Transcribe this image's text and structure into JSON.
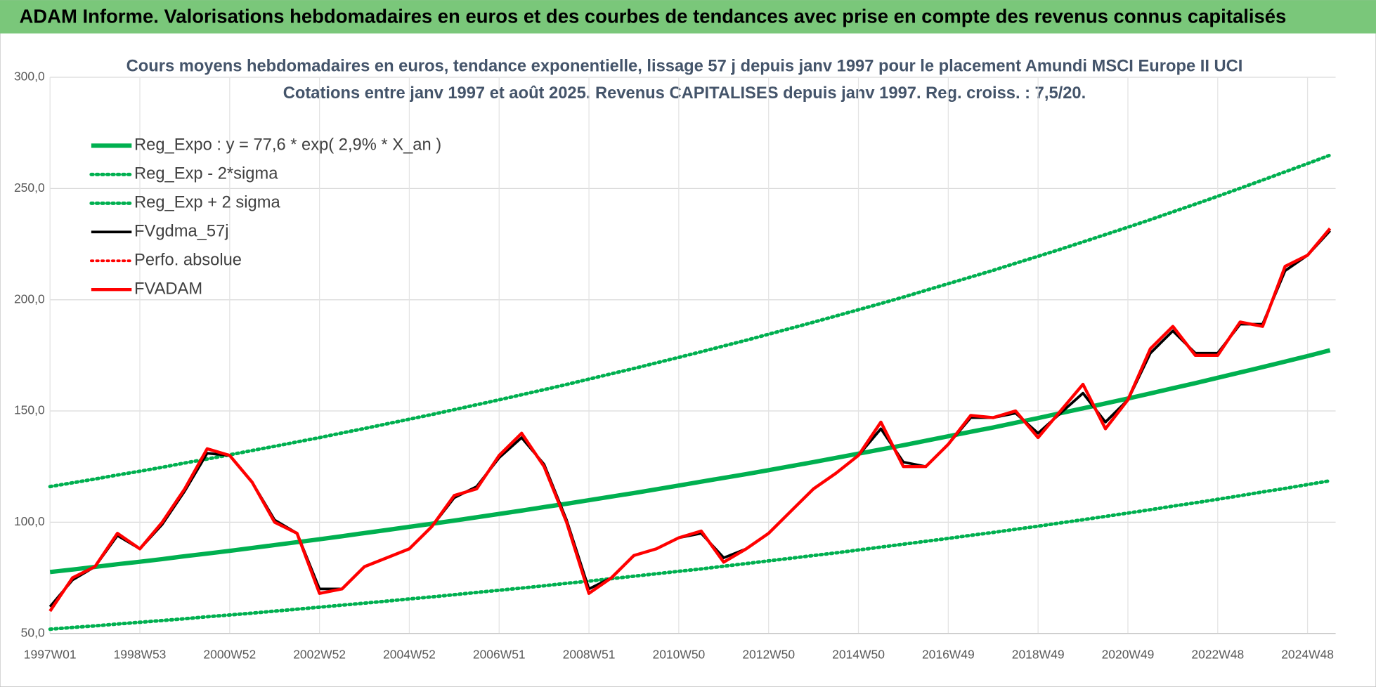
{
  "header": {
    "title": "ADAM Informe. Valorisations hebdomadaires en euros et des courbes de tendances avec prise en compte des revenus connus capitalisés"
  },
  "chart_data": {
    "type": "line",
    "title": "Cours moyens hebdomadaires en euros, tendance exponentielle, lissage 57 j depuis janv 1997 pour le placement Amundi MSCI Europe II UCI",
    "subtitle": "Cotations entre janv 1997 et août 2025. Revenus CAPITALISES depuis janv 1997. Reg. croiss. : 7,5/20.",
    "categories": [
      "1997W01",
      null,
      null,
      null,
      "1998W53",
      null,
      null,
      null,
      "2000W52",
      null,
      null,
      null,
      "2002W52",
      null,
      null,
      null,
      "2004W52",
      null,
      null,
      null,
      "2006W51",
      null,
      null,
      null,
      "2008W51",
      null,
      null,
      null,
      "2010W50",
      null,
      null,
      null,
      "2012W50",
      null,
      null,
      null,
      "2014W50",
      null,
      null,
      null,
      "2016W49",
      null,
      null,
      null,
      "2018W49",
      null,
      null,
      null,
      "2020W49",
      null,
      null,
      null,
      "2022W48",
      null,
      null,
      null,
      "2024W48",
      null
    ],
    "ylim": [
      50,
      300
    ],
    "yticks": [
      {
        "value": 50,
        "label": "50,0"
      },
      {
        "value": 100,
        "label": "100,0"
      },
      {
        "value": 150,
        "label": "150,0"
      },
      {
        "value": 200,
        "label": "200,0"
      },
      {
        "value": 250,
        "label": "250,0"
      },
      {
        "value": 300,
        "label": "300,0"
      }
    ],
    "grid": true,
    "legend": "upper-left",
    "series": [
      {
        "name": "Reg_Expo : y = 77,6 * exp( 2,9% *  X_an )",
        "color": "#00b050",
        "style": "solid",
        "values": [
          77.6,
          78.7,
          79.9,
          81.1,
          82.2,
          83.4,
          84.7,
          85.9,
          87.1,
          88.4,
          89.7,
          91.0,
          92.3,
          93.7,
          95.1,
          96.5,
          97.9,
          99.3,
          100.7,
          102.2,
          103.7,
          105.2,
          106.8,
          108.3,
          109.9,
          111.5,
          113.1,
          114.8,
          116.5,
          118.2,
          119.9,
          121.6,
          123.4,
          125.2,
          127.0,
          128.9,
          130.8,
          132.7,
          134.6,
          136.6,
          138.6,
          140.6,
          142.6,
          144.7,
          146.8,
          149.0,
          151.2,
          153.4,
          155.6,
          157.9,
          160.2,
          162.5,
          164.9,
          167.3,
          169.7,
          172.2,
          174.7,
          177.3
        ]
      },
      {
        "name": "Reg_Exp - 2*sigma",
        "color": "#00b050",
        "style": "dotted",
        "values": [
          51.9,
          52.7,
          53.4,
          54.2,
          55.0,
          55.8,
          56.6,
          57.5,
          58.3,
          59.1,
          60.0,
          60.9,
          61.8,
          62.7,
          63.6,
          64.5,
          65.5,
          66.4,
          67.4,
          68.4,
          69.4,
          70.4,
          71.4,
          72.5,
          73.5,
          74.6,
          75.7,
          76.8,
          77.9,
          79.0,
          80.2,
          81.4,
          82.6,
          83.8,
          85.0,
          86.2,
          87.5,
          88.8,
          90.1,
          91.4,
          92.7,
          94.1,
          95.4,
          96.8,
          98.2,
          99.7,
          101.1,
          102.6,
          104.1,
          105.6,
          107.2,
          108.7,
          110.3,
          111.9,
          113.6,
          115.2,
          116.9,
          118.6
        ]
      },
      {
        "name": "Reg_Exp + 2 sigma",
        "color": "#00b050",
        "style": "dotted",
        "values": [
          116.0,
          117.7,
          119.4,
          121.2,
          122.9,
          124.7,
          126.6,
          128.4,
          130.3,
          132.2,
          134.1,
          136.1,
          138.0,
          140.1,
          142.1,
          144.2,
          146.3,
          148.4,
          150.6,
          152.8,
          155.0,
          157.3,
          159.6,
          161.9,
          164.3,
          166.7,
          169.1,
          171.6,
          174.1,
          176.6,
          179.2,
          181.8,
          184.5,
          187.2,
          189.9,
          192.7,
          195.5,
          198.3,
          201.2,
          204.2,
          207.2,
          210.2,
          213.2,
          216.4,
          219.5,
          222.7,
          226.0,
          229.3,
          232.6,
          236.0,
          239.5,
          243.0,
          246.5,
          250.1,
          253.8,
          257.5,
          261.2,
          265.0
        ]
      },
      {
        "name": "FVgdma_57j",
        "color": "#000000",
        "style": "solid",
        "values": [
          62,
          74,
          80,
          94,
          88,
          99,
          114,
          131,
          130,
          118,
          101,
          95,
          70,
          70,
          80,
          84,
          88,
          98,
          111,
          116,
          129,
          138,
          126,
          101,
          70,
          75,
          85,
          88,
          93,
          95,
          84,
          88,
          95,
          105,
          115,
          122,
          130,
          142,
          127,
          125,
          135,
          147,
          147,
          149,
          140,
          149,
          158,
          145,
          155,
          176,
          186,
          176,
          176,
          189,
          189,
          213,
          220,
          231
        ]
      },
      {
        "name": "Perfo. absolue",
        "color": "#ff0000",
        "style": "dotted",
        "values": [
          null,
          null,
          null,
          null,
          null,
          null,
          null,
          null,
          null,
          null,
          null,
          null,
          null,
          null,
          null,
          null,
          null,
          null,
          null,
          null,
          null,
          null,
          null,
          null,
          null,
          null,
          null,
          null,
          null,
          null,
          null,
          null,
          null,
          null,
          null,
          null,
          null,
          null,
          null,
          null,
          null,
          null,
          null,
          null,
          null,
          null,
          null,
          null,
          null,
          null,
          null,
          null,
          null,
          null,
          null,
          null,
          null,
          null
        ]
      },
      {
        "name": "FVADAM",
        "color": "#ff0000",
        "style": "solid",
        "values": [
          60,
          75,
          80,
          95,
          88,
          100,
          115,
          133,
          130,
          118,
          100,
          95,
          68,
          70,
          80,
          84,
          88,
          98,
          112,
          115,
          130,
          140,
          125,
          100,
          68,
          75,
          85,
          88,
          93,
          96,
          82,
          88,
          95,
          105,
          115,
          122,
          130,
          145,
          125,
          125,
          135,
          148,
          147,
          150,
          138,
          150,
          162,
          142,
          155,
          178,
          188,
          175,
          175,
          190,
          188,
          215,
          220,
          232
        ]
      }
    ]
  }
}
